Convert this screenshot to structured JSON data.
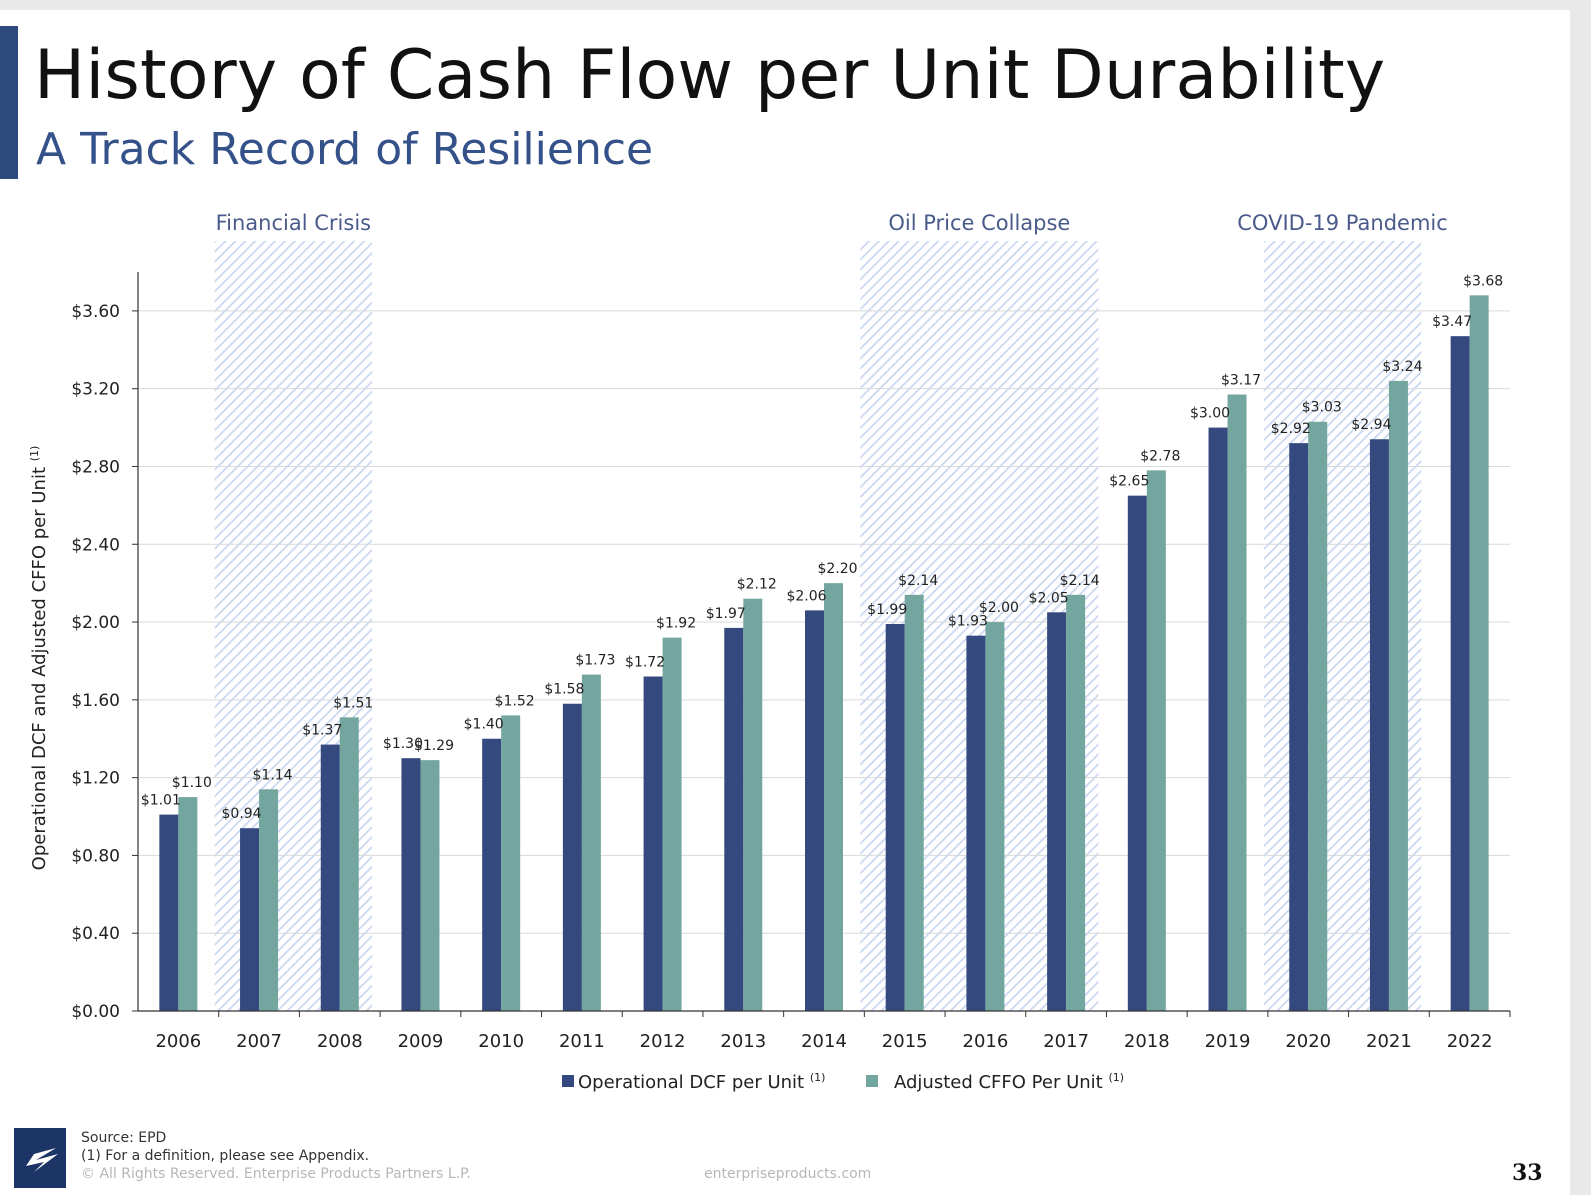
{
  "title": "History of Cash Flow per Unit Durability",
  "subtitle": "A Track Record of Resilience",
  "footer": {
    "source": "Source:  EPD",
    "footnote": "(1)  For a definition, please see Appendix.",
    "copyright": "© All Rights Reserved. Enterprise Products Partners L.P.",
    "website": "enterpriseproducts.com",
    "page_number": "33"
  },
  "colors": {
    "operational_dcf": "#34497e",
    "adjusted_cffo": "#74a6a0",
    "shading": "#c9d7ef",
    "accent": "#2f4a7c"
  },
  "chart_data": {
    "type": "bar",
    "ylabel": "Operational DCF and Adjusted CFFO per Unit",
    "ylabel_superscript": "(1)",
    "ylim": [
      0,
      3.8
    ],
    "yticks": [
      0,
      0.4,
      0.8,
      1.2,
      1.6,
      2.0,
      2.4,
      2.8,
      3.2,
      3.6
    ],
    "ytick_labels": [
      "$0.00",
      "$0.40",
      "$0.80",
      "$1.20",
      "$1.60",
      "$2.00",
      "$2.40",
      "$2.80",
      "$3.20",
      "$3.60"
    ],
    "grid": true,
    "legend_position": "bottom",
    "categories": [
      "2006",
      "2007",
      "2008",
      "2009",
      "2010",
      "2011",
      "2012",
      "2013",
      "2014",
      "2015",
      "2016",
      "2017",
      "2018",
      "2019",
      "2020",
      "2021",
      "2022"
    ],
    "series": [
      {
        "name": "Operational DCF per Unit",
        "superscript": "(1)",
        "values": [
          1.01,
          0.94,
          1.37,
          1.3,
          1.4,
          1.58,
          1.72,
          1.97,
          2.06,
          1.99,
          1.93,
          2.05,
          2.65,
          3.0,
          2.92,
          2.94,
          3.47
        ],
        "labels": [
          "$1.01",
          "$0.94",
          "$1.37",
          "$1.30",
          "$1.40",
          "$1.58",
          "$1.72",
          "$1.97",
          "$2.06",
          "$1.99",
          "$1.93",
          "$2.05",
          "$2.65",
          "$3.00",
          "$2.92",
          "$2.94",
          "$3.47"
        ]
      },
      {
        "name": "Adjusted CFFO Per Unit",
        "superscript": "(1)",
        "values": [
          1.1,
          1.14,
          1.51,
          1.29,
          1.52,
          1.73,
          1.92,
          2.12,
          2.2,
          2.14,
          2.0,
          2.14,
          2.78,
          3.17,
          3.03,
          3.24,
          3.68
        ],
        "labels": [
          "$1.10",
          "$1.14",
          "$1.51",
          "$1.29",
          "$1.52",
          "$1.73",
          "$1.92",
          "$2.12",
          "$2.20",
          "$2.14",
          "$2.00",
          "$2.14",
          "$2.78",
          "$3.17",
          "$3.03",
          "$3.24",
          "$3.68"
        ]
      }
    ],
    "annotations": [
      {
        "label": "Financial Crisis",
        "from": "2007",
        "to": "2008"
      },
      {
        "label": "Oil Price Collapse",
        "from": "2015",
        "to": "2017"
      },
      {
        "label": "COVID-19 Pandemic",
        "from": "2020",
        "to": "2021"
      }
    ]
  }
}
